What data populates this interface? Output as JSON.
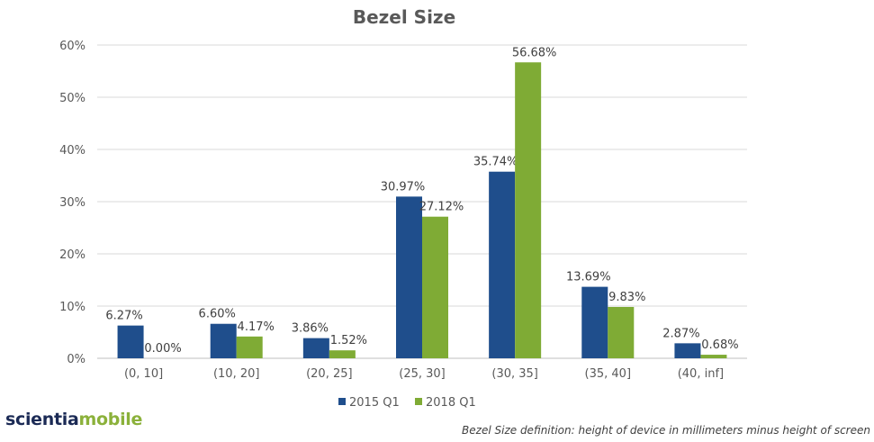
{
  "chart_data": {
    "type": "bar",
    "title": "Bezel Size",
    "categories": [
      "(0, 10]",
      "(10, 20]",
      "(20, 25]",
      "(25, 30]",
      "(30, 35]",
      "(35, 40]",
      "(40, inf]"
    ],
    "series": [
      {
        "name": "2015 Q1",
        "values": [
          6.27,
          6.6,
          3.86,
          30.97,
          35.74,
          13.69,
          2.87
        ],
        "labels": [
          "6.27%",
          "6.60%",
          "3.86%",
          "30.97%",
          "35.74%",
          "13.69%",
          "2.87%"
        ],
        "color": "#1f4e8c"
      },
      {
        "name": "2018 Q1",
        "values": [
          0.0,
          4.17,
          1.52,
          27.12,
          56.68,
          9.83,
          0.68
        ],
        "labels": [
          "0.00%",
          "4.17%",
          "1.52%",
          "27.12%",
          "56.68%",
          "9.83%",
          "0.68%"
        ],
        "color": "#7fab35"
      }
    ],
    "ylim": [
      0,
      60
    ],
    "yticks": [
      "0%",
      "10%",
      "20%",
      "30%",
      "40%",
      "50%",
      "60%"
    ],
    "grid": true,
    "legend_position": "bottom"
  },
  "branding": {
    "logo_part1": "scientia",
    "logo_part2": "mobile"
  },
  "footnote": "Bezel Size definition: height of device in millimeters minus height of screen"
}
